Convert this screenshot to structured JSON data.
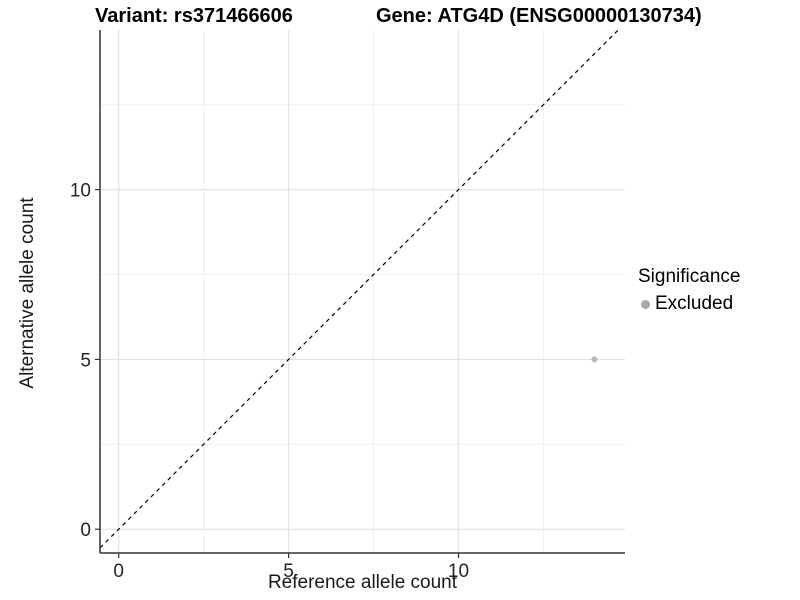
{
  "chart_data": {
    "type": "scatter",
    "title_left": "Variant: rs371466606",
    "title_right": "Gene: ATG4D (ENSG00000130734)",
    "xlabel": "Reference allele count",
    "ylabel": "Alternative allele count",
    "xlim": [
      -0.55,
      14.9
    ],
    "ylim": [
      -0.7,
      14.7
    ],
    "x_ticks": [
      0,
      5,
      10
    ],
    "y_ticks": [
      0,
      5,
      10
    ],
    "x_minor_ticks": [
      2.5,
      7.5,
      12.5
    ],
    "y_minor_ticks": [
      2.5,
      7.5,
      12.5
    ],
    "grid": "major+minor",
    "identity_line": {
      "slope": 1,
      "intercept": 0,
      "style": "dashed",
      "color": "#000000"
    },
    "series": [
      {
        "name": "Excluded",
        "color": "#b9b9b9",
        "points": [
          {
            "x": 14,
            "y": 5
          }
        ]
      }
    ],
    "legend": {
      "title": "Significance",
      "position": "right",
      "items": [
        {
          "label": "Excluded",
          "color": "#a8a8a8"
        }
      ]
    },
    "colors": {
      "background": "#ffffff",
      "axis_line": "#333333",
      "tick_text": "#262626",
      "grid_major": "#e4e4e4",
      "grid_minor": "#f0f0f0"
    }
  }
}
